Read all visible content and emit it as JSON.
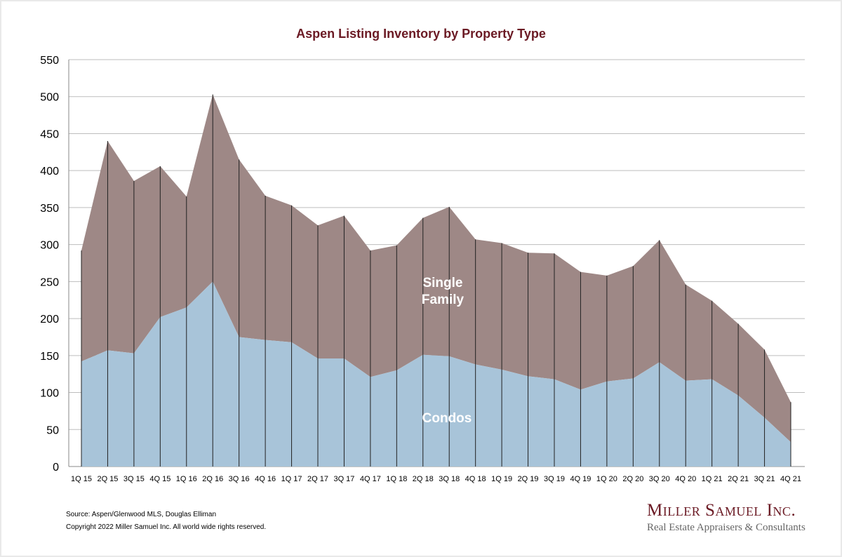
{
  "chart_data": {
    "type": "area",
    "stacked": true,
    "title": "Aspen Listing Inventory by Property Type",
    "xlabel": "",
    "ylabel": "",
    "ylim": [
      0,
      550
    ],
    "yticks": [
      0,
      50,
      100,
      150,
      200,
      250,
      300,
      350,
      400,
      450,
      500,
      550
    ],
    "grid": true,
    "categories": [
      "1Q 15",
      "2Q 15",
      "3Q 15",
      "4Q 15",
      "1Q 16",
      "2Q 16",
      "3Q 16",
      "4Q 16",
      "1Q 17",
      "2Q 17",
      "3Q 17",
      "4Q 17",
      "1Q 18",
      "2Q 18",
      "3Q 18",
      "4Q 18",
      "1Q 19",
      "2Q 19",
      "3Q 19",
      "4Q 19",
      "1Q 20",
      "2Q 20",
      "3Q 20",
      "4Q 20",
      "1Q 21",
      "2Q 21",
      "3Q 21",
      "4Q 21"
    ],
    "series": [
      {
        "name": "Condos",
        "color": "#a8c4d9",
        "values": [
          142,
          157,
          153,
          202,
          215,
          250,
          175,
          171,
          168,
          146,
          146,
          121,
          130,
          151,
          149,
          138,
          131,
          122,
          118,
          104,
          115,
          119,
          141,
          116,
          118,
          96,
          66,
          33
        ]
      },
      {
        "name": "Single Family",
        "color": "#9e8886",
        "values": [
          150,
          283,
          233,
          204,
          150,
          253,
          240,
          195,
          185,
          180,
          193,
          171,
          169,
          185,
          202,
          169,
          171,
          167,
          170,
          159,
          143,
          152,
          165,
          130,
          106,
          97,
          92,
          54
        ]
      }
    ],
    "annotations": [
      "Single\nFamily",
      "Condos"
    ]
  },
  "footer": {
    "source": "Source: Aspen/Glenwood MLS, Douglas Elliman",
    "copyright": "Copyright 2022 Miller Samuel Inc.  All world wide rights reserved."
  },
  "logo": {
    "name": "Miller Samuel Inc.",
    "tagline": "Real Estate Appraisers & Consultants"
  }
}
